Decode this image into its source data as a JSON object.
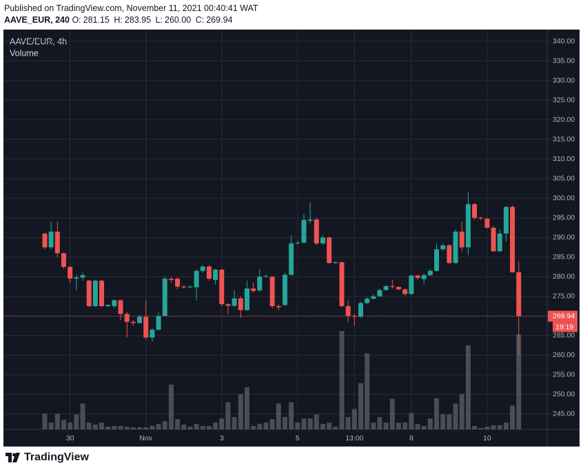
{
  "header": {
    "published": "Published on TradingView.com, November 11, 2021 00:40:41 WAT",
    "symbol": "AAVE_EUR, 240",
    "ohlc": [
      {
        "label": "O:",
        "value": "281.15"
      },
      {
        "label": "H:",
        "value": "283.95"
      },
      {
        "label": "L:",
        "value": "260.00"
      },
      {
        "label": "C:",
        "value": "269.94"
      }
    ]
  },
  "footer": {
    "brand": "TradingView"
  },
  "chart_data": {
    "type": "candlestick",
    "title": "AAVE/EUR, 4h",
    "volume_label": "Volume",
    "countdown": "19:19",
    "up_color": "#26a69a",
    "down_color": "#ef5350",
    "volume_color": "#5d606b",
    "categories": [
      null,
      null,
      null,
      null,
      "30",
      null,
      null,
      null,
      null,
      null,
      null,
      null,
      null,
      null,
      null,
      null,
      "Nov",
      null,
      null,
      null,
      null,
      null,
      null,
      null,
      null,
      null,
      null,
      null,
      "3",
      null,
      null,
      null,
      null,
      null,
      null,
      null,
      null,
      null,
      null,
      null,
      "5",
      null,
      null,
      null,
      null,
      null,
      null,
      null,
      null,
      "13:00",
      null,
      null,
      null,
      null,
      null,
      null,
      null,
      null,
      "8",
      null,
      null,
      null,
      null,
      null,
      null,
      null,
      null,
      null,
      null,
      null,
      "10",
      null,
      null,
      null,
      null,
      null
    ],
    "open": [
      291,
      287.5,
      291.5,
      286,
      282.5,
      279.5,
      279.8,
      279,
      272.5,
      279,
      272.5,
      272.5,
      274,
      270.5,
      268.5,
      268.2,
      269.8,
      264.5,
      266.5,
      270,
      279.5,
      279.5,
      277.5,
      277.3,
      277.3,
      281.5,
      282.6,
      279.2,
      281.8,
      273,
      272.6,
      274.5,
      271.5,
      277,
      276.5,
      280,
      280,
      272.5,
      272.8,
      280.5,
      288.5,
      288.7,
      294.3,
      294.6,
      288.5,
      290,
      283.5,
      283.7,
      272.5,
      270,
      269.8,
      273.3,
      274.4,
      275,
      276.6,
      277.6,
      277.4,
      276.8,
      275.6,
      280.3,
      279.4,
      280.4,
      281.5,
      287,
      288,
      283.5,
      291.5,
      287.5,
      298.5,
      295,
      294.8,
      292.5,
      286.5,
      291,
      297.8,
      281.15
    ],
    "high": [
      291.2,
      294,
      294,
      286.2,
      282.8,
      280.5,
      281,
      279.2,
      279.2,
      279.2,
      273,
      274.2,
      274.2,
      271,
      269,
      270.2,
      274,
      267,
      271,
      280,
      280,
      279.8,
      277.8,
      277.8,
      281.8,
      283,
      283,
      282,
      282,
      273.3,
      276.5,
      275,
      279,
      278.5,
      282,
      280.5,
      280.2,
      273,
      281,
      290.5,
      289.2,
      296,
      299,
      295,
      290.5,
      290.2,
      283.9,
      283.9,
      274,
      270.5,
      273.6,
      274.8,
      275.5,
      277,
      278,
      279.2,
      277.6,
      277,
      280.5,
      280.6,
      280.8,
      282,
      288.5,
      288.5,
      288.3,
      292,
      294,
      301.5,
      298.8,
      295.3,
      295,
      293,
      292,
      298,
      298.2,
      283.95
    ],
    "low": [
      287,
      287,
      285,
      282,
      278.5,
      276.5,
      279,
      272.3,
      272.3,
      272.3,
      272.3,
      272,
      269,
      264.5,
      267.5,
      268,
      264,
      263.5,
      266.3,
      270,
      278.5,
      276.8,
      277,
      277,
      274,
      281,
      279,
      278,
      272.5,
      270.5,
      272.3,
      269.5,
      271.3,
      276,
      276.2,
      279.8,
      272,
      271.5,
      272.5,
      280.3,
      288.3,
      288.5,
      293.5,
      288,
      288.2,
      283.3,
      283.3,
      272.2,
      268.5,
      267.5,
      269.6,
      273,
      274.2,
      274.8,
      276.4,
      277,
      276.5,
      275.2,
      275.4,
      279.2,
      278,
      280.2,
      281.3,
      286.5,
      283.3,
      283.3,
      286.5,
      285.5,
      294.5,
      294.5,
      292.3,
      286.3,
      286.3,
      289,
      281,
      260
    ],
    "close": [
      287.5,
      291.5,
      286,
      282.5,
      279.5,
      279.8,
      280.4,
      272.5,
      279,
      272.5,
      272.8,
      274,
      270.5,
      268.5,
      268.2,
      269.8,
      264.5,
      266.5,
      270,
      279.5,
      279.2,
      277.5,
      277.3,
      277.5,
      281.5,
      282.6,
      279.5,
      281.8,
      273,
      272.6,
      274.5,
      271.5,
      277,
      276.4,
      280,
      280.2,
      272.5,
      272.2,
      280.5,
      288.5,
      288.7,
      294.5,
      294.6,
      288.5,
      290,
      283.5,
      283.7,
      272.5,
      270,
      269.8,
      273.3,
      274.4,
      275,
      276.6,
      277.6,
      277.4,
      276.8,
      275.6,
      280.3,
      279.7,
      280.4,
      281.5,
      287,
      288,
      283.5,
      291.5,
      287.5,
      298.5,
      295,
      294.8,
      292.5,
      286.5,
      291,
      297.8,
      281.15,
      269.94
    ],
    "volume": [
      23,
      10,
      23,
      14,
      10,
      22,
      38,
      10,
      7,
      10,
      4,
      5,
      5,
      4,
      3,
      3,
      3,
      5,
      8,
      12,
      66,
      15,
      7,
      4,
      8,
      5,
      5,
      10,
      16,
      40,
      18,
      52,
      62,
      5,
      8,
      10,
      15,
      38,
      18,
      40,
      10,
      16,
      16,
      22,
      8,
      10,
      4,
      145,
      18,
      30,
      68,
      112,
      10,
      18,
      10,
      45,
      10,
      10,
      24,
      8,
      5,
      16,
      46,
      22,
      22,
      38,
      52,
      124,
      5,
      2,
      4,
      6,
      6,
      10,
      35,
      140
    ],
    "ylim": [
      241.1,
      343.0
    ],
    "yticks": [
      {
        "value": 245,
        "label": "245.00"
      },
      {
        "value": 250,
        "label": "250.00"
      },
      {
        "value": 255,
        "label": "255.00"
      },
      {
        "value": 260,
        "label": "260.00"
      },
      {
        "value": 265,
        "label": "265.00"
      },
      {
        "value": 270,
        "label": "270.00"
      },
      {
        "value": 275,
        "label": "275.00"
      },
      {
        "value": 280,
        "label": "280.00"
      },
      {
        "value": 285,
        "label": "285.00"
      },
      {
        "value": 290,
        "label": "290.00"
      },
      {
        "value": 295,
        "label": "295.00"
      },
      {
        "value": 300,
        "label": "300.00"
      },
      {
        "value": 305,
        "label": "305.00"
      },
      {
        "value": 310,
        "label": "310.00"
      },
      {
        "value": 315,
        "label": "315.00"
      },
      {
        "value": 320,
        "label": "320.00"
      },
      {
        "value": 325,
        "label": "325.00"
      },
      {
        "value": 330,
        "label": "330.00"
      },
      {
        "value": 335,
        "label": "335.00"
      },
      {
        "value": 340,
        "label": "340.00"
      }
    ],
    "grid": true
  }
}
